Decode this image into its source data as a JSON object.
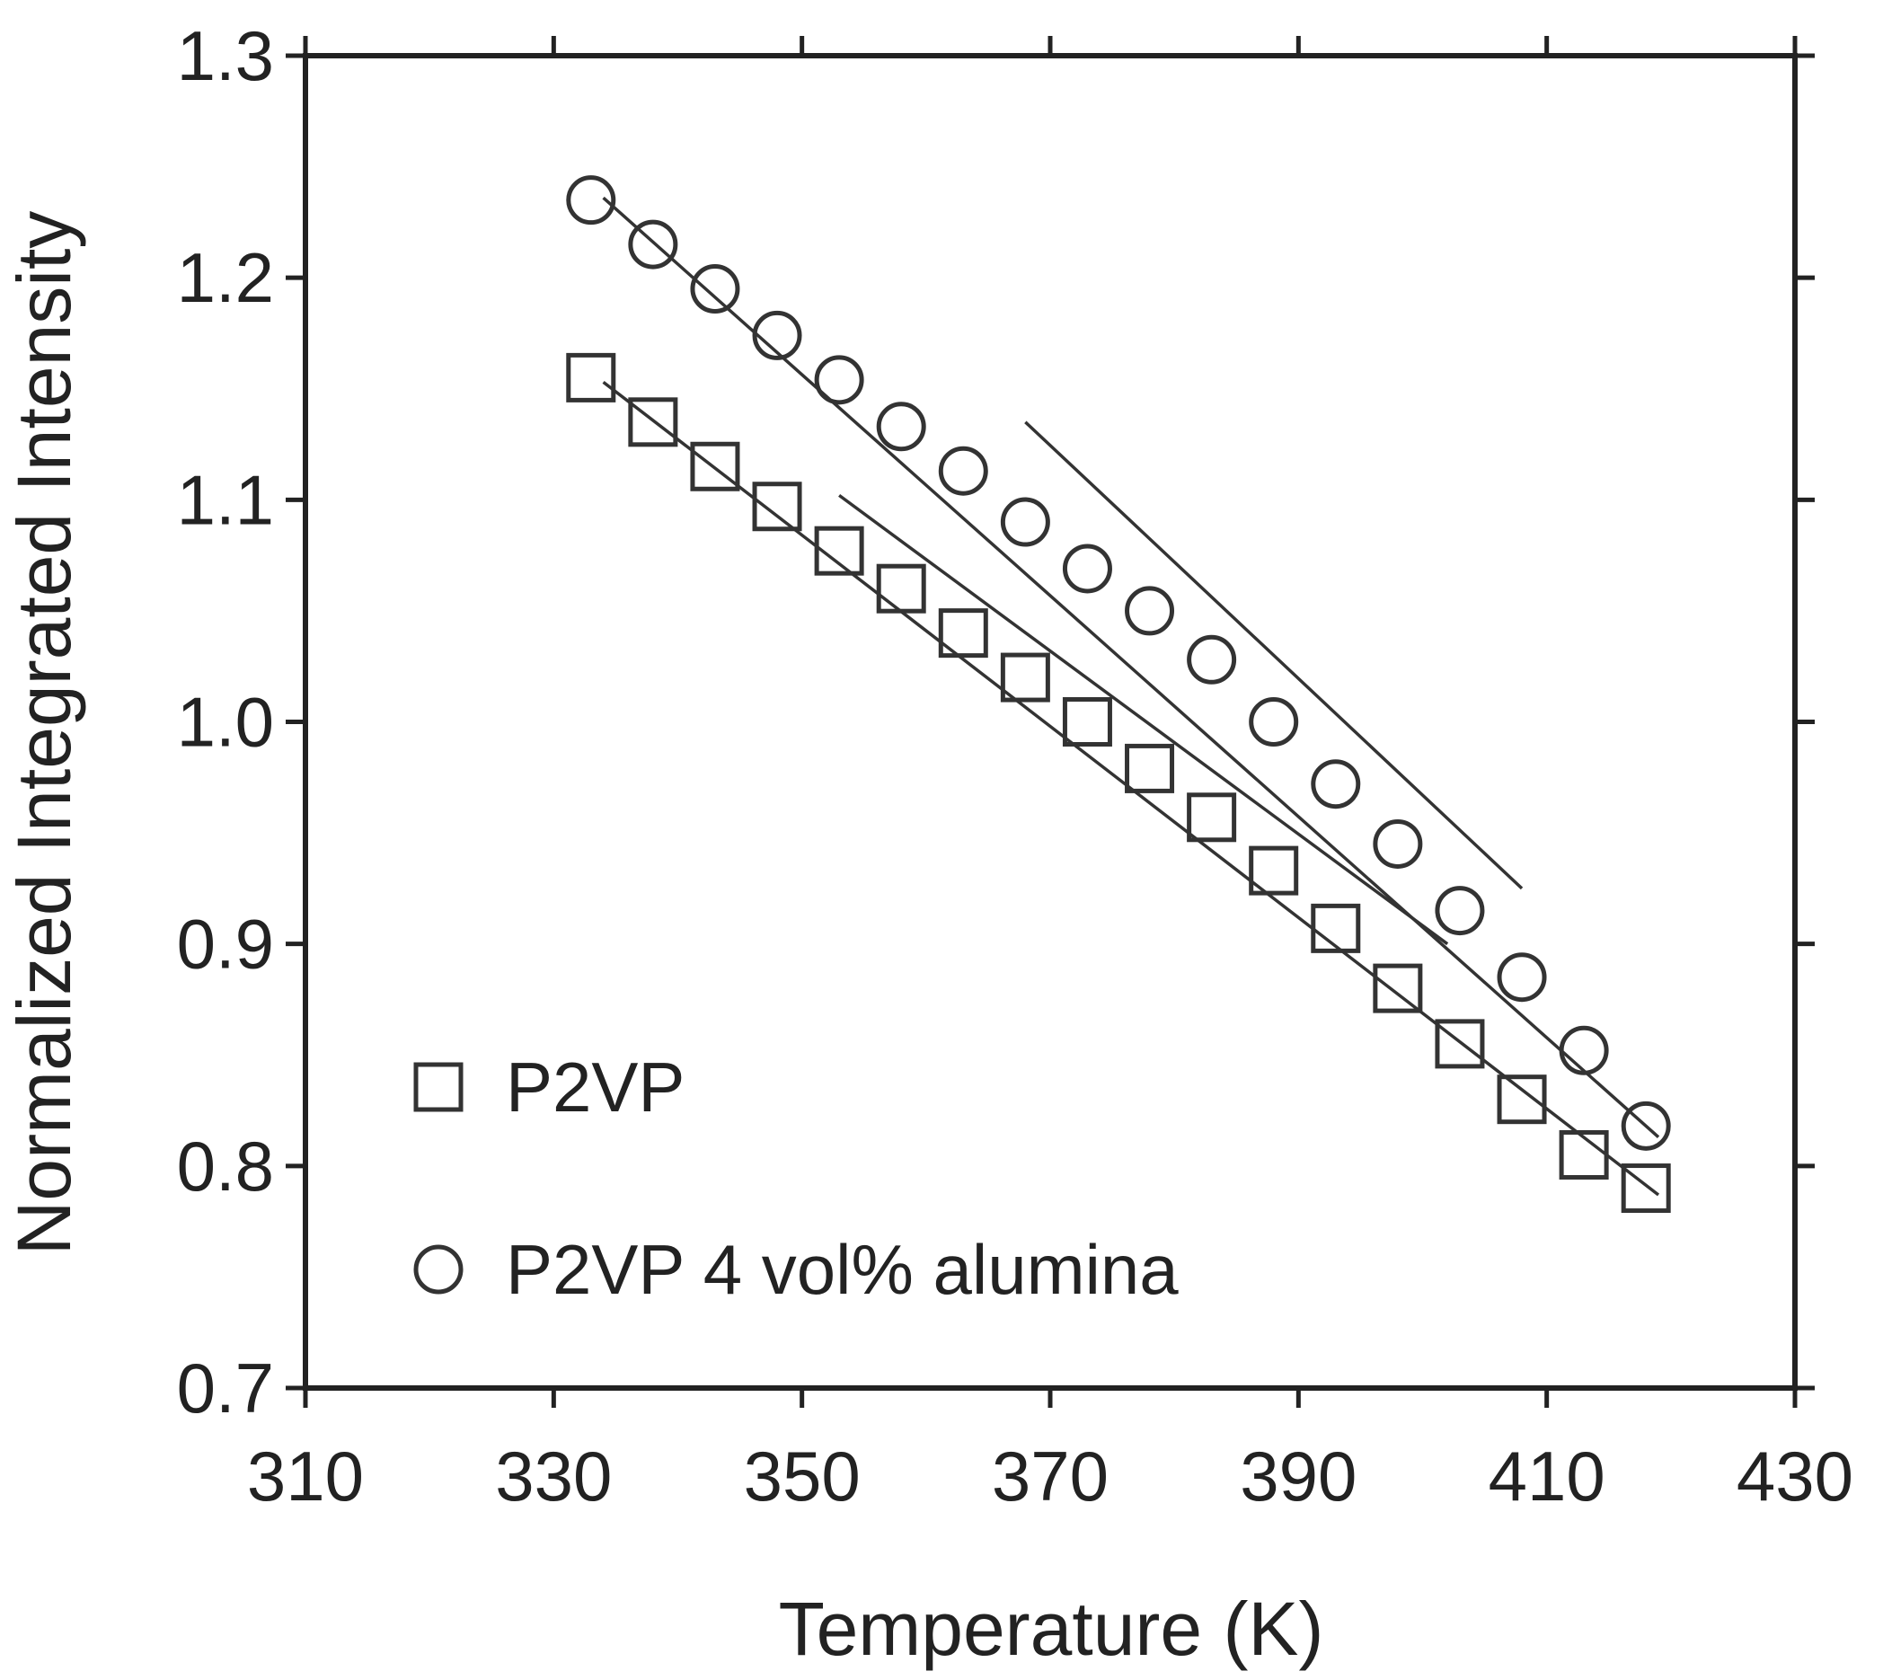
{
  "chart_data": {
    "type": "scatter",
    "title": "",
    "xlabel": "Temperature (K)",
    "ylabel": "Normalized Integrated Intensity",
    "xlim": [
      310,
      430
    ],
    "ylim": [
      0.7,
      1.3
    ],
    "x_ticks": [
      310,
      330,
      350,
      370,
      390,
      410,
      430
    ],
    "x_tick_labels": [
      "310",
      "330",
      "350",
      "370",
      "390",
      "410",
      "430"
    ],
    "y_ticks": [
      0.7,
      0.8,
      0.9,
      1.0,
      1.1,
      1.2,
      1.3
    ],
    "y_tick_labels": [
      "0.7",
      "0.8",
      "0.9",
      "1.0",
      "1.1",
      "1.2",
      "1.3"
    ],
    "grid": false,
    "legend_position": "bottom-left",
    "series": [
      {
        "name": "P2VP",
        "marker": "square",
        "color": "#333333",
        "x": [
          333,
          338,
          343,
          348,
          353,
          358,
          363,
          368,
          373,
          378,
          383,
          388,
          393,
          398,
          403,
          408,
          413,
          418
        ],
        "y": [
          1.155,
          1.135,
          1.115,
          1.097,
          1.077,
          1.06,
          1.04,
          1.02,
          1.0,
          0.979,
          0.957,
          0.933,
          0.907,
          0.88,
          0.855,
          0.83,
          0.805,
          0.79
        ]
      },
      {
        "name": "P2VP 4 vol% alumina",
        "marker": "circle",
        "color": "#333333",
        "x": [
          333,
          338,
          343,
          348,
          353,
          358,
          363,
          368,
          373,
          378,
          383,
          388,
          393,
          398,
          403,
          408,
          413,
          418
        ],
        "y": [
          1.235,
          1.215,
          1.195,
          1.174,
          1.154,
          1.133,
          1.113,
          1.09,
          1.069,
          1.05,
          1.028,
          1.0,
          0.972,
          0.945,
          0.915,
          0.885,
          0.852,
          0.818
        ]
      }
    ],
    "fit_lines": [
      {
        "x": [
          334,
          419
        ],
        "y": [
          1.153,
          0.787
        ],
        "color": "#333333"
      },
      {
        "x": [
          353,
          402
        ],
        "y": [
          1.102,
          0.9
        ],
        "color": "#333333"
      },
      {
        "x": [
          334,
          419
        ],
        "y": [
          1.236,
          0.813
        ],
        "color": "#333333"
      },
      {
        "x": [
          368,
          408
        ],
        "y": [
          1.135,
          0.925
        ],
        "color": "#333333"
      }
    ]
  }
}
